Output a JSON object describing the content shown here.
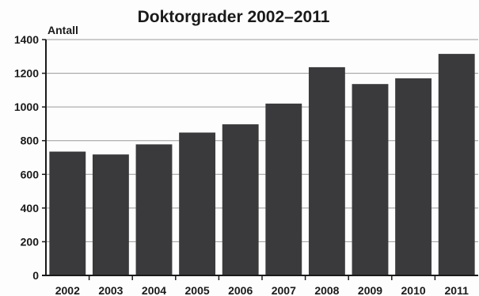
{
  "chart_data": {
    "type": "bar",
    "title": "Doktorgrader 2002–2011",
    "xlabel": "",
    "ylabel": "Antall",
    "categories": [
      "2002",
      "2003",
      "2004",
      "2005",
      "2006",
      "2007",
      "2008",
      "2009",
      "2010",
      "2011"
    ],
    "values": [
      735,
      718,
      778,
      848,
      897,
      1020,
      1236,
      1136,
      1170,
      1315
    ],
    "ylim": [
      0,
      1400
    ],
    "yticks": [
      0,
      200,
      400,
      600,
      800,
      1000,
      1200,
      1400
    ],
    "ytick_labels": [
      "0",
      "200",
      "400",
      "600",
      "800",
      "1000",
      "1200",
      "1400"
    ],
    "grid": true,
    "legend": "none",
    "colors": {
      "bar": "#3a3a3c",
      "grid": "#9a9a9a",
      "axis": "#1a1a1a"
    }
  }
}
